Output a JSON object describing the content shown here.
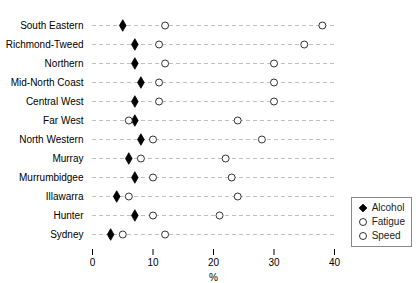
{
  "chart_data": {
    "type": "dot",
    "orientation": "horizontal",
    "categories": [
      "South Eastern",
      "Richmond-Tweed",
      "Northern",
      "Mid-North Coast",
      "Central West",
      "Far West",
      "North Western",
      "Murray",
      "Murrumbidgee",
      "Illawarra",
      "Hunter",
      "Sydney"
    ],
    "series": [
      {
        "name": "Alcohol",
        "color": "black",
        "marker": "diamond",
        "values": [
          5,
          7,
          7,
          8,
          7,
          7,
          8,
          6,
          7,
          4,
          7,
          3
        ]
      },
      {
        "name": "Fatigue",
        "color": "white",
        "marker": "circle",
        "values": [
          12,
          11,
          12,
          11,
          11,
          6,
          10,
          8,
          10,
          6,
          10,
          5
        ]
      },
      {
        "name": "Speed",
        "color": "white",
        "marker": "circle",
        "values": [
          38,
          35,
          30,
          30,
          30,
          24,
          28,
          22,
          23,
          24,
          21,
          12
        ]
      }
    ],
    "xlabel": "%",
    "xlim": [
      0,
      40
    ],
    "xticks": [
      0,
      10,
      20,
      30,
      40
    ],
    "grid": true,
    "line_style": "dashed",
    "color": "#b0b0b0",
    "legend": "lower right"
  }
}
